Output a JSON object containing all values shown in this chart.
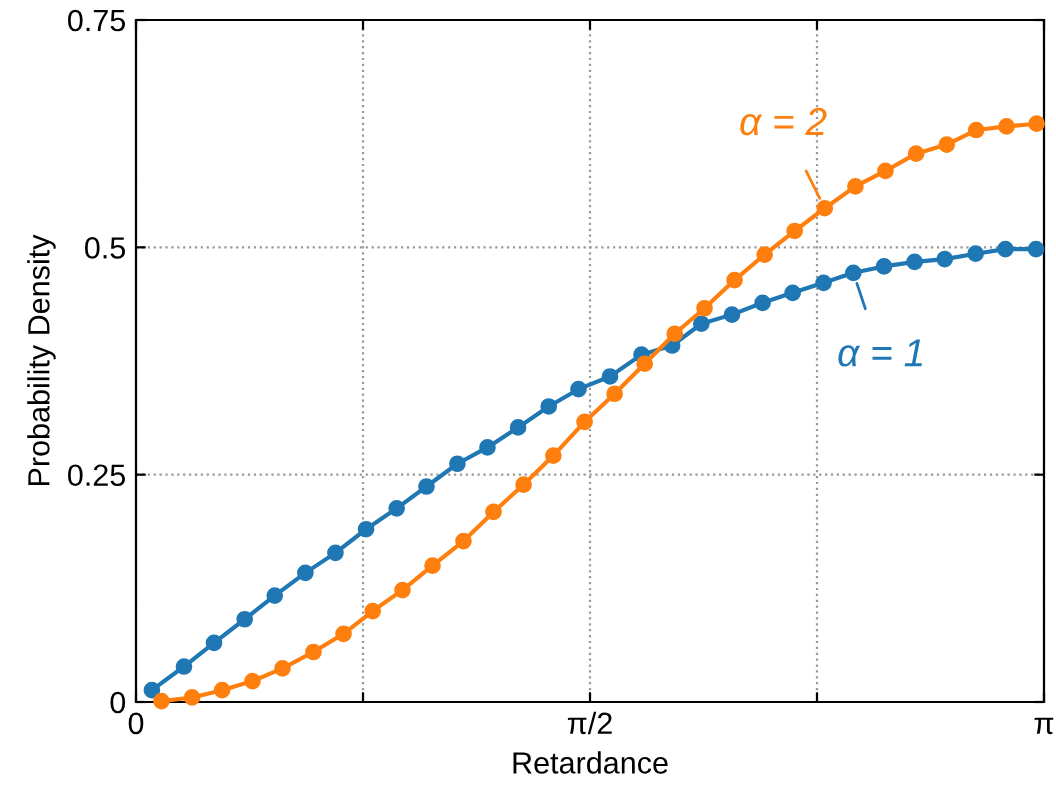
{
  "chart_data": {
    "type": "line",
    "xlabel": "Retardance",
    "ylabel": "Probability Density",
    "xlim": [
      0,
      3.1416
    ],
    "xticks": [
      0,
      {
        "value": 0.7854,
        "label": null
      },
      {
        "value": 1.5708,
        "label": "π/2"
      },
      {
        "value": 2.3562,
        "label": null
      },
      {
        "value": 3.1416,
        "label": "π"
      }
    ],
    "ylim": [
      0,
      0.75
    ],
    "yticks": [
      0,
      0.25,
      0.5,
      0.75
    ],
    "grid": true,
    "legend": "right",
    "marker": "circle",
    "line_style": "solid",
    "series": [
      {
        "name": "α = 1",
        "color": "#1f77b4",
        "x": [
          0.055,
          0.166,
          0.27,
          0.376,
          0.48,
          0.586,
          0.69,
          0.796,
          0.902,
          1.005,
          1.112,
          1.216,
          1.322,
          1.428,
          1.531,
          1.64,
          1.749,
          1.855,
          1.956,
          2.062,
          2.168,
          2.272,
          2.379,
          2.482,
          2.588,
          2.694,
          2.798,
          2.905,
          3.008,
          3.114
        ],
        "values": [
          0.013,
          0.039,
          0.065,
          0.091,
          0.117,
          0.142,
          0.164,
          0.19,
          0.213,
          0.237,
          0.262,
          0.28,
          0.302,
          0.325,
          0.344,
          0.358,
          0.382,
          0.392,
          0.416,
          0.426,
          0.439,
          0.45,
          0.461,
          0.472,
          0.479,
          0.484,
          0.487,
          0.493,
          0.498,
          0.498
        ]
      },
      {
        "name": "α = 2",
        "color": "#ff7f0e",
        "x": [
          0.088,
          0.194,
          0.298,
          0.403,
          0.507,
          0.614,
          0.718,
          0.819,
          0.922,
          1.026,
          1.133,
          1.237,
          1.341,
          1.444,
          1.552,
          1.656,
          1.76,
          1.864,
          1.967,
          2.071,
          2.175,
          2.279,
          2.383,
          2.489,
          2.593,
          2.699,
          2.805,
          2.907,
          3.012,
          3.116
        ],
        "values": [
          0.001,
          0.005,
          0.013,
          0.023,
          0.037,
          0.055,
          0.075,
          0.1,
          0.123,
          0.15,
          0.177,
          0.209,
          0.239,
          0.271,
          0.308,
          0.339,
          0.372,
          0.405,
          0.433,
          0.464,
          0.492,
          0.518,
          0.543,
          0.567,
          0.584,
          0.603,
          0.613,
          0.629,
          0.633,
          0.636
        ]
      }
    ]
  }
}
